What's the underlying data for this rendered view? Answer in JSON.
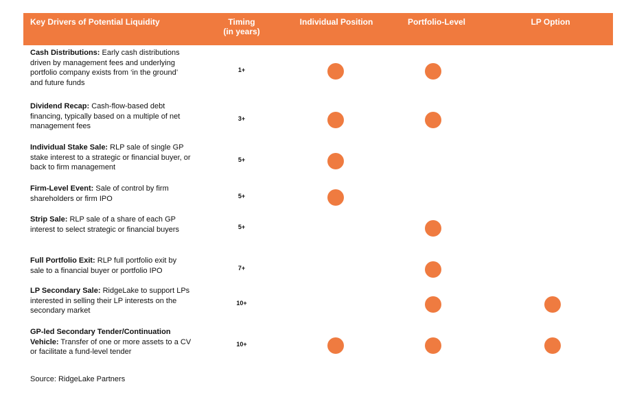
{
  "header": {
    "drivers": "Key Drivers of Potential Liquidity",
    "timing_line1": "Timing",
    "timing_line2": "(in years)",
    "individual": "Individual Position",
    "portfolio": "Portfolio-Level",
    "lp": "LP Option"
  },
  "colors": {
    "accent": "#f07a3e",
    "dot": "#ef7b40"
  },
  "rows": [
    {
      "title": "Cash Distributions:",
      "text": " Early cash distributions driven by management fees and underlying portfolio company exists from ‘in the ground’ and future funds",
      "timing": "1+",
      "individual": true,
      "portfolio": true,
      "lp": false
    },
    {
      "title": "Dividend Recap:",
      "text": " Cash-flow-based debt financing, typically based on a multiple of net management fees",
      "timing": "3+",
      "individual": true,
      "portfolio": true,
      "lp": false
    },
    {
      "title": "Individual Stake Sale:",
      "text": " RLP sale of single GP stake interest to a strategic or financial buyer, or back to  firm management",
      "timing": "5+",
      "individual": true,
      "portfolio": false,
      "lp": false
    },
    {
      "title": "Firm-Level Event:",
      "text": " Sale of control by firm shareholders or firm IPO",
      "timing": "5+",
      "individual": true,
      "portfolio": false,
      "lp": false
    },
    {
      "title": "Strip Sale:",
      "text": " RLP sale of a share of each GP interest to select strategic or financial buyers",
      "timing": "5+",
      "individual": false,
      "portfolio": true,
      "lp": false
    },
    {
      "title": "Full Portfolio Exit:",
      "text": " RLP full portfolio exit by sale to a financial buyer or portfolio IPO",
      "timing": "7+",
      "individual": false,
      "portfolio": true,
      "lp": false
    },
    {
      "title": "LP Secondary Sale:",
      "text": " RidgeLake to support LPs interested in selling their LP interests on the secondary market",
      "timing": "10+",
      "individual": false,
      "portfolio": true,
      "lp": true
    },
    {
      "title": "GP-led Secondary Tender/Continuation Vehicle:",
      "text": " Transfer of one or more assets to a CV or facilitate a fund-level tender",
      "timing": "10+",
      "individual": true,
      "portfolio": true,
      "lp": true
    }
  ],
  "source": "Source: RidgeLake Partners"
}
